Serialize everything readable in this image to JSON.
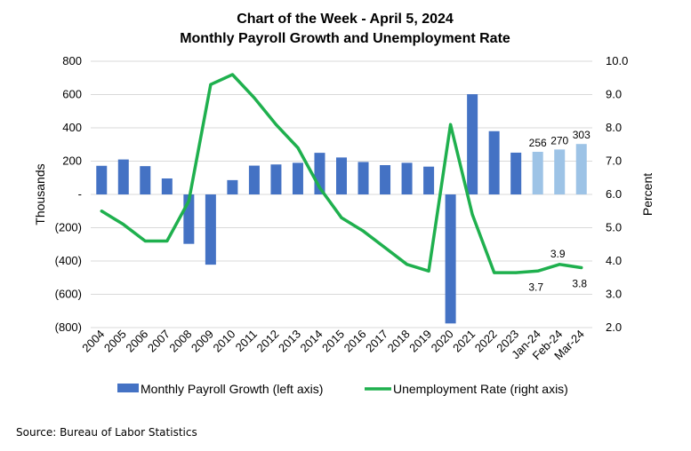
{
  "source": "Source: Bureau of Labor Statistics",
  "chart_data": {
    "type": "bar+line",
    "title": "Chart of the Week - April 5, 2024",
    "subtitle": "Monthly Payroll Growth and Unemployment Rate",
    "categories": [
      "2004",
      "2005",
      "2006",
      "2007",
      "2008",
      "2009",
      "2010",
      "2011",
      "2012",
      "2013",
      "2014",
      "2015",
      "2016",
      "2017",
      "2018",
      "2019",
      "2020",
      "2021",
      "2022",
      "2023",
      "Jan-24",
      "Feb-24",
      "Mar-24"
    ],
    "left_axis": {
      "label": "Thousands",
      "ylim": [
        -800,
        800
      ],
      "ticks": [
        800,
        600,
        400,
        200,
        0,
        -200,
        -400,
        -600,
        -800
      ],
      "tick_labels": [
        "800",
        "600",
        "400",
        "200",
        "-",
        "(200)",
        "(400)",
        "(600)",
        "(800)"
      ]
    },
    "right_axis": {
      "label": "Percent",
      "ylim": [
        2.0,
        10.0
      ],
      "ticks": [
        10,
        9,
        8,
        7,
        6,
        5,
        4,
        3,
        2
      ],
      "tick_labels": [
        "10.0",
        "9.0",
        "8.0",
        "7.0",
        "6.0",
        "5.0",
        "4.0",
        "3.0",
        "2.0"
      ]
    },
    "series": [
      {
        "name": "Monthly Payroll Growth (left axis)",
        "type": "bar",
        "axis": "left",
        "color": "#4472C4",
        "highlight_color": "#9DC3E6",
        "highlight_from_index": 20,
        "values": [
          172,
          210,
          170,
          96,
          -297,
          -422,
          86,
          173,
          180,
          190,
          250,
          222,
          195,
          176,
          190,
          167,
          -775,
          602,
          380,
          251,
          256,
          270,
          303
        ],
        "data_labels": [
          {
            "index": 20,
            "text": "256"
          },
          {
            "index": 21,
            "text": "270"
          },
          {
            "index": 22,
            "text": "303"
          }
        ]
      },
      {
        "name": "Unemployment Rate (right axis)",
        "type": "line",
        "axis": "right",
        "color": "#1FB04E",
        "values": [
          5.5,
          5.1,
          4.6,
          4.6,
          5.8,
          9.3,
          9.6,
          8.9,
          8.1,
          7.4,
          6.2,
          5.3,
          4.9,
          4.4,
          3.9,
          3.7,
          8.1,
          5.4,
          3.65,
          3.65,
          3.7,
          3.9,
          3.8
        ],
        "data_labels": [
          {
            "index": 20,
            "text": "3.7"
          },
          {
            "index": 21,
            "text": "3.9"
          },
          {
            "index": 22,
            "text": "3.8"
          }
        ]
      }
    ],
    "legend_position": "bottom",
    "grid": true
  }
}
